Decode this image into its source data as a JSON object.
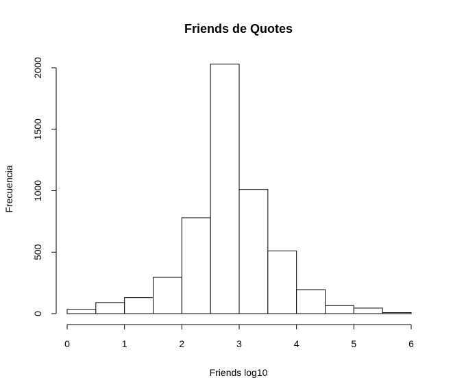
{
  "chart_data": {
    "type": "bar",
    "title": "Friends de Quotes",
    "xlabel": "Friends log10",
    "ylabel": "Frecuencia",
    "bins": [
      {
        "x0": 0.0,
        "x1": 0.5,
        "count": 35
      },
      {
        "x0": 0.5,
        "x1": 1.0,
        "count": 90
      },
      {
        "x0": 1.0,
        "x1": 1.5,
        "count": 130
      },
      {
        "x0": 1.5,
        "x1": 2.0,
        "count": 295
      },
      {
        "x0": 2.0,
        "x1": 2.5,
        "count": 780
      },
      {
        "x0": 2.5,
        "x1": 3.0,
        "count": 2030
      },
      {
        "x0": 3.0,
        "x1": 3.5,
        "count": 1010
      },
      {
        "x0": 3.5,
        "x1": 4.0,
        "count": 510
      },
      {
        "x0": 4.0,
        "x1": 4.5,
        "count": 195
      },
      {
        "x0": 4.5,
        "x1": 5.0,
        "count": 65
      },
      {
        "x0": 5.0,
        "x1": 5.5,
        "count": 45
      },
      {
        "x0": 5.5,
        "x1": 6.0,
        "count": 8
      }
    ],
    "xlim": [
      0,
      6
    ],
    "ylim": [
      0,
      2000
    ],
    "xticks": [
      "0",
      "1",
      "2",
      "3",
      "4",
      "5",
      "6"
    ],
    "yticks": [
      "0",
      "500",
      "1000",
      "1500",
      "2000"
    ],
    "grid": false,
    "bar_fill": "#ffffff",
    "bar_stroke": "#000000"
  }
}
